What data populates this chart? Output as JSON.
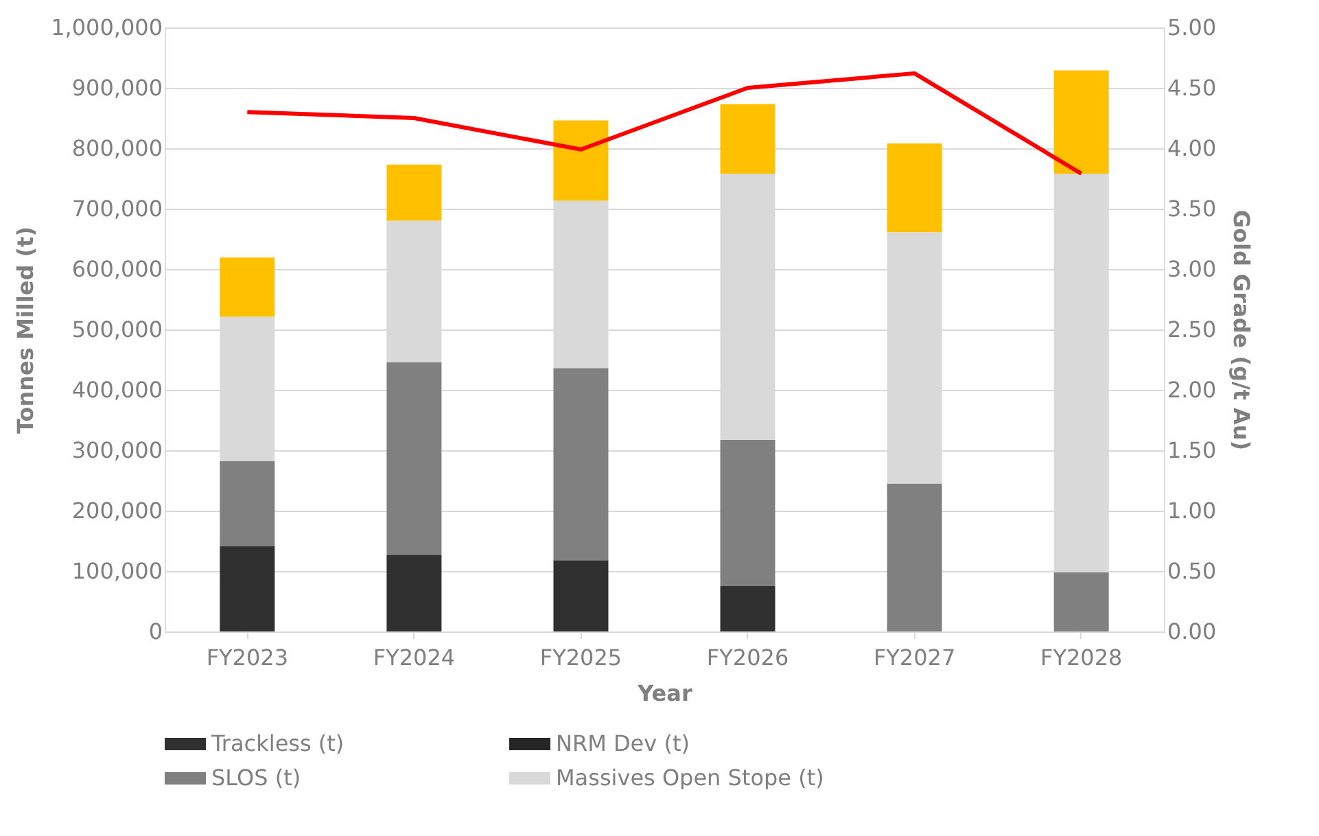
{
  "chart_data": {
    "type": "bar",
    "stacked": true,
    "xlabel": "Year",
    "ylabel": "Tonnes Milled (t)",
    "y2label": "Gold Grade (g/t Au)",
    "categories": [
      "FY2023",
      "FY2024",
      "FY2025",
      "FY2026",
      "FY2027",
      "FY2028"
    ],
    "series": [
      {
        "name": "Trackless (t)",
        "color": "#303030",
        "values": [
          141000,
          127000,
          118000,
          75000,
          0,
          0
        ]
      },
      {
        "name": "NRM Dev (t)",
        "color": "#262626",
        "values": [
          0,
          0,
          0,
          0,
          0,
          0
        ]
      },
      {
        "name": "SLOS (t)",
        "color": "#808080",
        "values": [
          141000,
          319000,
          318000,
          242000,
          245000,
          98000
        ]
      },
      {
        "name": "Massives Open Stope (t)",
        "color": "#d9d9d9",
        "values": [
          239000,
          234000,
          277000,
          441000,
          416000,
          660000
        ]
      },
      {
        "color": "#ffc000",
        "values": [
          98000,
          93000,
          133000,
          115000,
          147000,
          171000
        ]
      },
      {
        "type": "line",
        "axis": "y2",
        "color": "#ff0000",
        "values": [
          4.3,
          4.25,
          3.99,
          4.5,
          4.62,
          3.79
        ]
      }
    ],
    "ylim": [
      0,
      1000000
    ],
    "yticks": [
      0,
      {
        "value": 100000,
        "label": "100,000"
      },
      {
        "value": 200000,
        "label": "200,000"
      },
      {
        "value": 300000,
        "label": "300,000"
      },
      {
        "value": 400000,
        "label": "400,000"
      },
      {
        "value": 500000,
        "label": "500,000"
      },
      {
        "value": 600000,
        "label": "600,000"
      },
      {
        "value": 700000,
        "label": "700,000"
      },
      {
        "value": 800000,
        "label": "800,000"
      },
      {
        "value": 900000,
        "label": "900,000"
      },
      {
        "value": 1000000,
        "label": "1,000,000"
      }
    ],
    "y2lim": [
      0,
      5
    ],
    "y2ticks": [
      {
        "value": 0,
        "label": "0.00"
      },
      {
        "value": 0.5,
        "label": "0.50"
      },
      {
        "value": 1,
        "label": "1.00"
      },
      {
        "value": 1.5,
        "label": "1.50"
      },
      {
        "value": 2,
        "label": "2.00"
      },
      {
        "value": 2.5,
        "label": "2.50"
      },
      {
        "value": 3,
        "label": "3.00"
      },
      {
        "value": 3.5,
        "label": "3.50"
      },
      {
        "value": 4,
        "label": "4.00"
      },
      {
        "value": 4.5,
        "label": "4.50"
      },
      {
        "value": 5,
        "label": "5.00"
      }
    ],
    "grid": "y",
    "legend": "bottom"
  }
}
